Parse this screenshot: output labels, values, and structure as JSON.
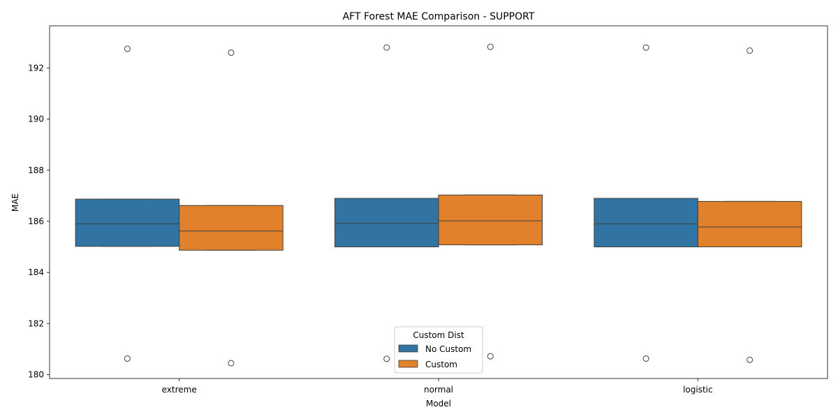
{
  "chart_data": {
    "type": "box",
    "title": "AFT Forest MAE Comparison - SUPPORT",
    "xlabel": "Model",
    "ylabel": "MAE",
    "categories": [
      "extreme",
      "normal",
      "logistic"
    ],
    "ylim": [
      179.85,
      193.65
    ],
    "yticks": [
      180,
      182,
      184,
      186,
      188,
      190,
      192
    ],
    "grid": false,
    "legend": {
      "title": "Custom Dist",
      "placement": "bottom-center"
    },
    "series": [
      {
        "name": "No Custom",
        "color": "#3274a1",
        "boxes": [
          {
            "q1": 185.02,
            "median": 185.9,
            "q3": 186.87,
            "whisker_low": 185.02,
            "whisker_high": 186.87,
            "outliers": [
              192.75,
              180.63
            ]
          },
          {
            "q1": 185.0,
            "median": 185.92,
            "q3": 186.9,
            "whisker_low": 185.0,
            "whisker_high": 186.9,
            "outliers": [
              192.8,
              180.62
            ]
          },
          {
            "q1": 185.0,
            "median": 185.9,
            "q3": 186.9,
            "whisker_low": 185.0,
            "whisker_high": 186.9,
            "outliers": [
              192.8,
              180.63
            ]
          }
        ]
      },
      {
        "name": "Custom",
        "color": "#e1812c",
        "boxes": [
          {
            "q1": 184.87,
            "median": 185.62,
            "q3": 186.62,
            "whisker_low": 184.87,
            "whisker_high": 186.62,
            "outliers": [
              192.6,
              180.45
            ]
          },
          {
            "q1": 185.08,
            "median": 186.02,
            "q3": 187.03,
            "whisker_low": 185.08,
            "whisker_high": 187.03,
            "outliers": [
              192.83,
              180.72
            ]
          },
          {
            "q1": 185.0,
            "median": 185.78,
            "q3": 186.78,
            "whisker_low": 185.0,
            "whisker_high": 186.78,
            "outliers": [
              192.68,
              180.58
            ]
          }
        ]
      }
    ]
  }
}
